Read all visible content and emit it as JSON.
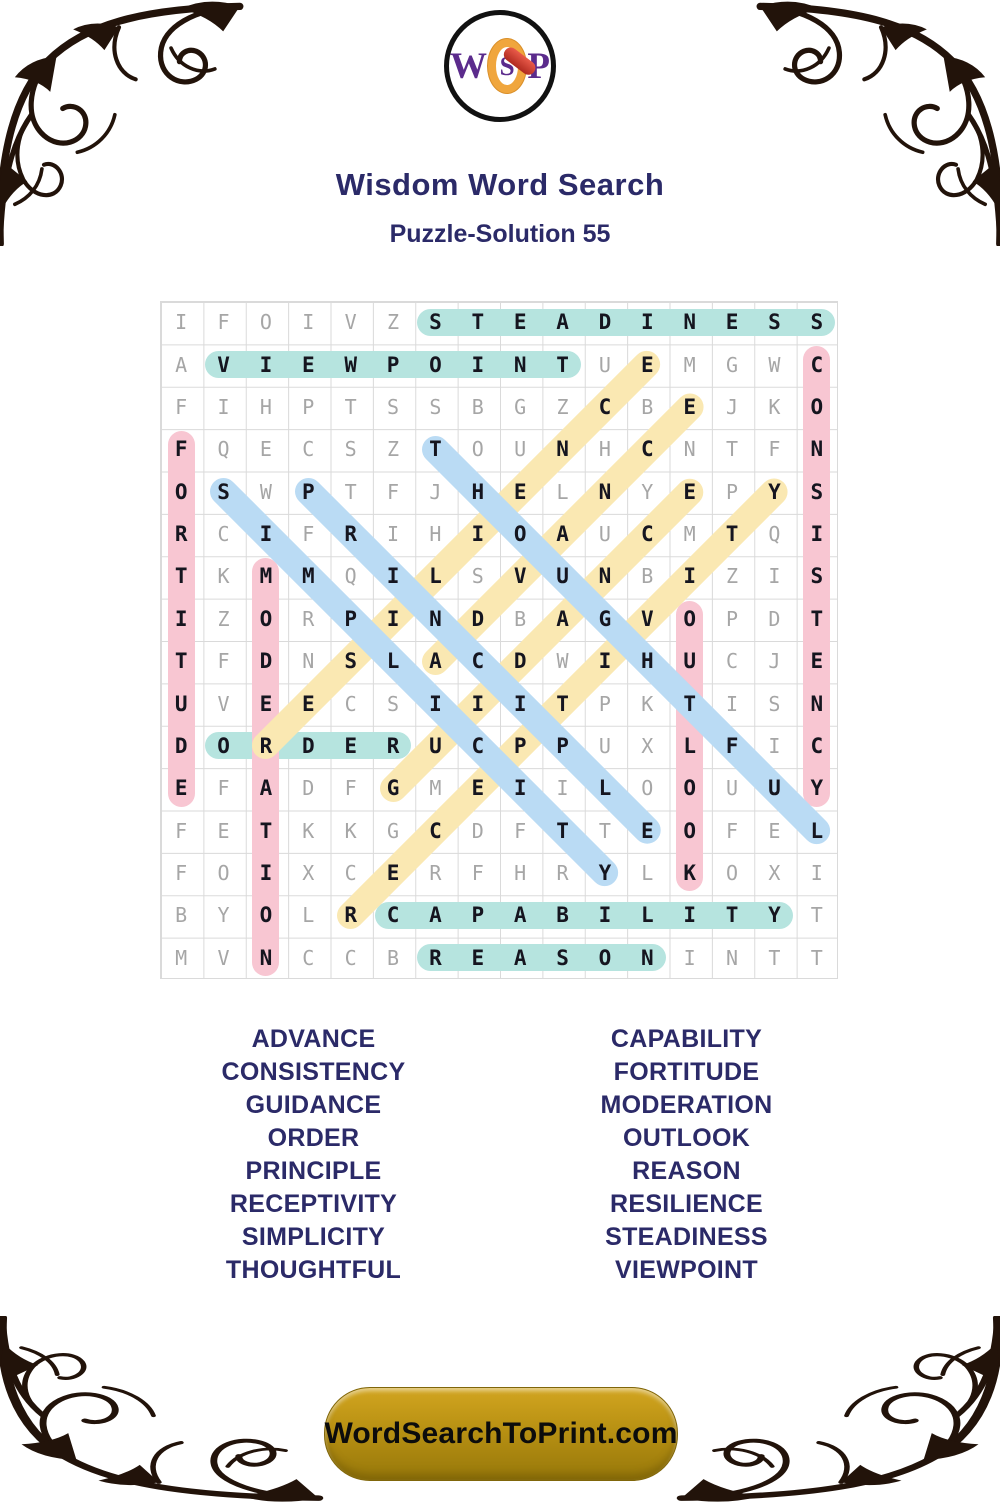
{
  "logo": {
    "w": "W",
    "s": "S",
    "p": "P"
  },
  "header": {
    "title": "Wisdom Word Search",
    "subtitle": "Puzzle-Solution 55"
  },
  "grid": {
    "size": 16,
    "rows": [
      "IFOIVZSTEADINESS",
      "AVIEWPOINTUEMGWC",
      "FIHPTSSBGZCBEJKO",
      "FQECSZTOUNHCNTFN",
      "OSWPTFJHELNYEPYS",
      "RCIFRIHIOAUCMTQI",
      "TKMMQILSVUNBIZIS",
      "IZORPINDBAGVOPDT",
      "TFDNSLACDWIHUCJE",
      "UVEECSIIITPKTISN",
      "DORDERUCPPUXLFIC",
      "EFADFGMEIILOOUUY",
      "FETKKGCDFTTEOFEL",
      "FOIXCERFHRYLKOXI",
      "BYOLRCAPABILITYT",
      "MVNCCBREASONINTT"
    ],
    "solutions": [
      {
        "word": "STEADINESS",
        "row": 1,
        "col": 7,
        "dir": "H",
        "color": "teal"
      },
      {
        "word": "VIEWPOINT",
        "row": 2,
        "col": 2,
        "dir": "H",
        "color": "teal"
      },
      {
        "word": "ORDER",
        "row": 11,
        "col": 2,
        "dir": "H",
        "color": "teal"
      },
      {
        "word": "CAPABILITY",
        "row": 15,
        "col": 6,
        "dir": "H",
        "color": "teal"
      },
      {
        "word": "REASON",
        "row": 16,
        "col": 7,
        "dir": "H",
        "color": "teal"
      },
      {
        "word": "FORTITUDE",
        "row": 4,
        "col": 1,
        "dir": "V",
        "color": "pink"
      },
      {
        "word": "CONSISTENCY",
        "row": 2,
        "col": 16,
        "dir": "V",
        "color": "pink"
      },
      {
        "word": "MODERATION",
        "row": 7,
        "col": 3,
        "dir": "V",
        "color": "pink"
      },
      {
        "word": "OUTLOOK",
        "row": 8,
        "col": 13,
        "dir": "V",
        "color": "pink"
      },
      {
        "word": "RESILIENCE",
        "row": 11,
        "col": 3,
        "dir": "UR",
        "color": "yellow"
      },
      {
        "word": "ADVANCE",
        "row": 9,
        "col": 7,
        "dir": "UR",
        "color": "yellow"
      },
      {
        "word": "GUIDANCE",
        "row": 12,
        "col": 6,
        "dir": "UR",
        "color": "yellow"
      },
      {
        "word": "RECEPTIVITY",
        "row": 15,
        "col": 5,
        "dir": "UR",
        "color": "yellow"
      },
      {
        "word": "THOUGHTFUL",
        "row": 4,
        "col": 7,
        "dir": "DR",
        "color": "blue"
      },
      {
        "word": "SIMPLICITY",
        "row": 5,
        "col": 2,
        "dir": "DR",
        "color": "blue"
      },
      {
        "word": "PRINCIPLE",
        "row": 5,
        "col": 4,
        "dir": "DR",
        "color": "blue"
      }
    ]
  },
  "word_list": {
    "left": [
      "ADVANCE",
      "CONSISTENCY",
      "GUIDANCE",
      "ORDER",
      "PRINCIPLE",
      "RECEPTIVITY",
      "SIMPLICITY",
      "THOUGHTFUL"
    ],
    "right": [
      "CAPABILITY",
      "FORTITUDE",
      "MODERATION",
      "OUTLOOK",
      "REASON",
      "RESILIENCE",
      "STEADINESS",
      "VIEWPOINT"
    ]
  },
  "footer": {
    "site": "WordSearchToPrint.com"
  },
  "colors": {
    "teal": "#b6e4df",
    "pink": "#f8c6d2",
    "yellow": "#fae8b2",
    "blue": "#badbf4",
    "navy": "#2b2a68",
    "gold": "#b18c10"
  }
}
